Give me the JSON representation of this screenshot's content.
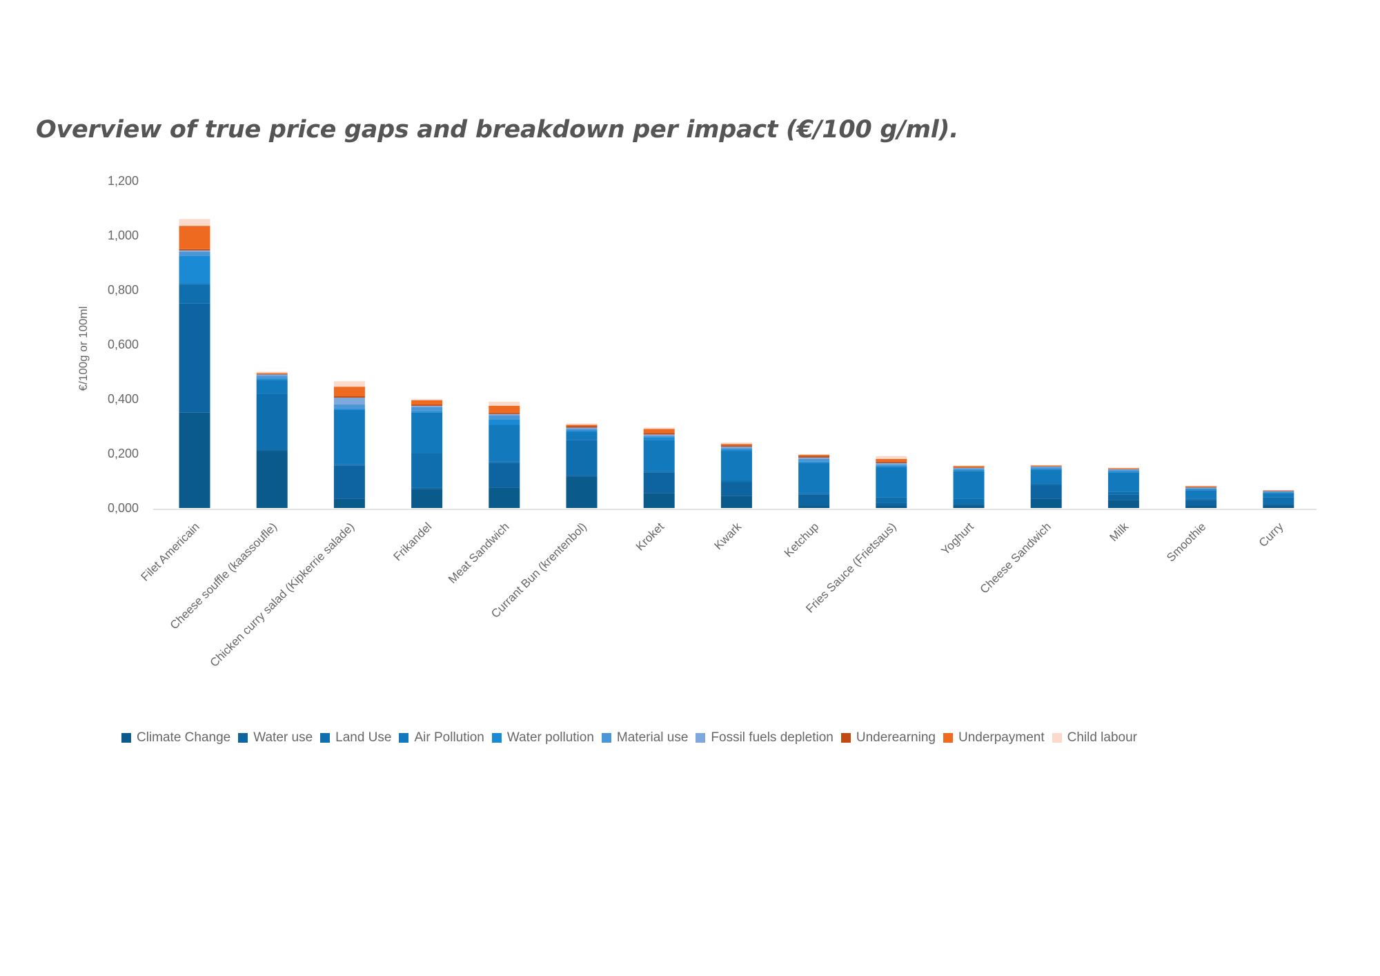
{
  "chart_data": {
    "type": "bar",
    "stacked": true,
    "title": "Overview of true price gaps and breakdown per impact (€/100 g/ml).",
    "xlabel": "",
    "ylabel": "€/100g or 100ml",
    "ylim": [
      0,
      1.2
    ],
    "yticks": [
      "0,000",
      "0,200",
      "0,400",
      "0,600",
      "0,800",
      "1,000",
      "1,200"
    ],
    "ytick_values": [
      0,
      0.2,
      0.4,
      0.6,
      0.8,
      1.0,
      1.2
    ],
    "grid": false,
    "legend_position": "bottom",
    "categories": [
      "Filet Americain",
      "Cheese souffle (kaassoufle)",
      "Chicken curry salad (Kipkerrie salade)",
      "Frikandel",
      "Meat Sandwich",
      "Currant Bun (krentenbol)",
      "Kroket",
      "Kwark",
      "Ketchup",
      "Fries Sauce (Frietsaus)",
      "Yoghurt",
      "Cheese Sandwich",
      "Milk",
      "Smoothie",
      "Curry"
    ],
    "series": [
      {
        "name": "Climate Change",
        "color": "#0b5a8c",
        "values": [
          0.35,
          0.21,
          0.035,
          0.07,
          0.075,
          0.115,
          0.055,
          0.045,
          0.01,
          0.01,
          0.01,
          0.035,
          0.03,
          0.01,
          0.01
        ]
      },
      {
        "name": "Water use",
        "color": "#0e64a0",
        "values": [
          0.4,
          0.005,
          0.12,
          0.005,
          0.09,
          0.005,
          0.075,
          0.05,
          0.04,
          0.01,
          0.005,
          0.05,
          0.02,
          0.02,
          0.005
        ]
      },
      {
        "name": "Land Use",
        "color": "#0f6fae",
        "values": [
          0.07,
          0.205,
          0.005,
          0.125,
          0.005,
          0.13,
          0.005,
          0.005,
          0.005,
          0.02,
          0.02,
          0.005,
          0.01,
          0.005,
          0.025
        ]
      },
      {
        "name": "Air Pollution",
        "color": "#1279bd",
        "values": [
          0.005,
          0.05,
          0.2,
          0.15,
          0.135,
          0.03,
          0.115,
          0.11,
          0.11,
          0.11,
          0.1,
          0.05,
          0.07,
          0.03,
          0.015
        ]
      },
      {
        "name": "Water pollution",
        "color": "#1a8ad4",
        "values": [
          0.1,
          0.005,
          0.005,
          0.005,
          0.02,
          0.005,
          0.01,
          0.005,
          0.005,
          0.005,
          0.005,
          0.005,
          0.005,
          0.005,
          0.003
        ]
      },
      {
        "name": "Material use",
        "color": "#4a96d6",
        "values": [
          0.015,
          0.01,
          0.015,
          0.015,
          0.015,
          0.005,
          0.005,
          0.005,
          0.01,
          0.005,
          0.005,
          0.005,
          0.005,
          0.003,
          0.002
        ]
      },
      {
        "name": "Fossil fuels depletion",
        "color": "#7fa8dc",
        "values": [
          0.005,
          0.005,
          0.025,
          0.005,
          0.005,
          0.005,
          0.005,
          0.005,
          0.005,
          0.005,
          0.002,
          0.002,
          0.002,
          0.002,
          0.002
        ]
      },
      {
        "name": "Underearning",
        "color": "#c04a12",
        "values": [
          0.005,
          0.002,
          0.005,
          0.005,
          0.005,
          0.005,
          0.005,
          0.005,
          0.005,
          0.005,
          0.002,
          0.002,
          0.002,
          0.002,
          0.002
        ]
      },
      {
        "name": "Underpayment",
        "color": "#ee6a21",
        "values": [
          0.085,
          0.003,
          0.035,
          0.015,
          0.025,
          0.005,
          0.015,
          0.005,
          0.005,
          0.01,
          0.005,
          0.002,
          0.002,
          0.003,
          0.001
        ]
      },
      {
        "name": "Child labour",
        "color": "#fbdacb",
        "values": [
          0.025,
          0.005,
          0.02,
          0.005,
          0.015,
          0.005,
          0.005,
          0.005,
          0.002,
          0.01,
          0.002,
          0.002,
          0.002,
          0.002,
          0.001
        ]
      }
    ]
  }
}
